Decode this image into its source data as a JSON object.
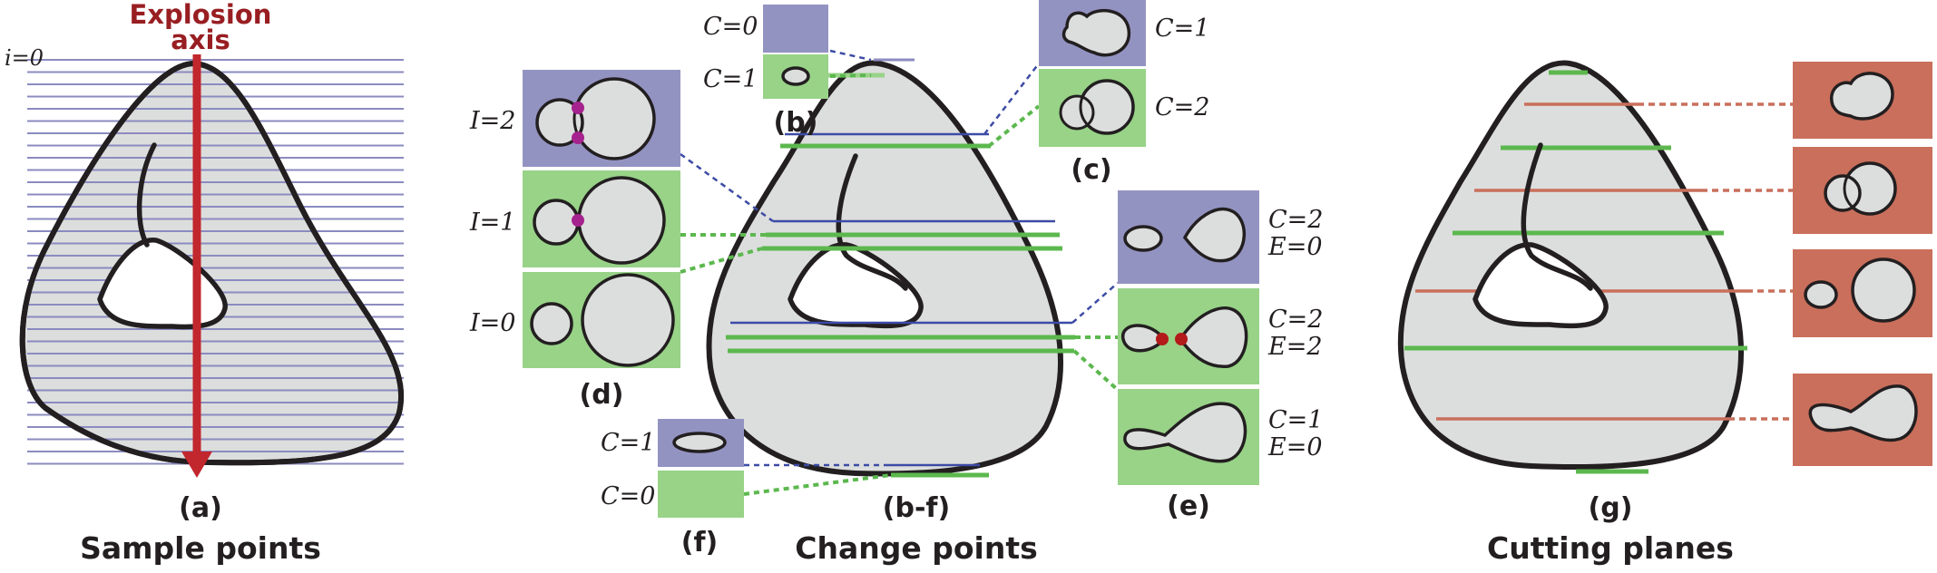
{
  "explosion_axis": {
    "line1": "Explosion",
    "line2": "axis",
    "label": "i=0"
  },
  "panel_a": {
    "letter": "(a)",
    "title": "Sample points"
  },
  "panel_b": {
    "letter": "(b)",
    "top_label": "C=0",
    "bottom_label": "C=1"
  },
  "panel_c": {
    "letter": "(c)",
    "top_label": "C=1",
    "bottom_label": "C=2"
  },
  "panel_d": {
    "letter": "(d)",
    "labels": [
      "I=2",
      "I=1",
      "I=0"
    ]
  },
  "panel_e": {
    "letter": "(e)",
    "labels": [
      [
        "C=2",
        "E=0"
      ],
      [
        "C=2",
        "E=2"
      ],
      [
        "C=1",
        "E=0"
      ]
    ]
  },
  "panel_f": {
    "letter": "(f)",
    "top_label": "C=1",
    "bottom_label": "C=0"
  },
  "panel_bf": {
    "letter": "(b-f)",
    "title": "Change points"
  },
  "panel_g": {
    "letter": "(g)",
    "title": "Cutting planes"
  },
  "colors": {
    "shape_fill": "#dcdedd",
    "outline": "#231f20",
    "sample_line": "#8b8bc0",
    "axis_arrow": "#c1272d",
    "change_purple": "#9393c2",
    "change_green": "#98d388",
    "cut_red": "#c96f5b",
    "intersection_magenta": "#a6228e",
    "extremum_red": "#b31b1b"
  }
}
